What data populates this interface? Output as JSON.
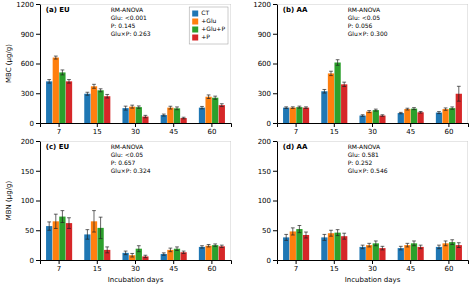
{
  "chart_data": [
    {
      "type": "bar",
      "title": "(a) EU",
      "ylabel": "MBC (μg/g)",
      "annotations": [
        "RM-ANOVA",
        "Glu: <0.001",
        "P: 0.145",
        "Glu×P: 0.263"
      ],
      "categories": [
        "7",
        "15",
        "30",
        "45",
        "60"
      ],
      "series": [
        {
          "name": "CT",
          "values": [
            420,
            295,
            150,
            80,
            155
          ],
          "errors": [
            18,
            15,
            20,
            10,
            12
          ]
        },
        {
          "name": "+Glu",
          "values": [
            660,
            370,
            165,
            155,
            265
          ],
          "errors": [
            15,
            20,
            15,
            14,
            18
          ]
        },
        {
          "name": "+Glu+P",
          "values": [
            510,
            330,
            160,
            148,
            255
          ],
          "errors": [
            25,
            15,
            12,
            14,
            16
          ]
        },
        {
          "name": "+P",
          "values": [
            420,
            270,
            65,
            50,
            180
          ],
          "errors": [
            18,
            18,
            12,
            8,
            14
          ]
        }
      ],
      "ylim": [
        0,
        1200
      ],
      "yticks": [
        0,
        300,
        600,
        900,
        1200
      ],
      "grid": false,
      "legend": "upper right"
    },
    {
      "type": "bar",
      "title": "(b) AA",
      "annotations": [
        "RM-ANOVA",
        "Glu: <0.05",
        "P: 0.056",
        "Glu×P: 0.300"
      ],
      "categories": [
        "7",
        "15",
        "30",
        "45",
        "60"
      ],
      "series": [
        {
          "values": [
            155,
            320,
            75,
            100,
            105
          ],
          "errors": [
            8,
            18,
            8,
            7,
            10
          ]
        },
        {
          "values": [
            155,
            500,
            115,
            140,
            140
          ],
          "errors": [
            8,
            22,
            10,
            9,
            12
          ]
        },
        {
          "values": [
            160,
            610,
            130,
            145,
            150
          ],
          "errors": [
            10,
            28,
            10,
            10,
            12
          ]
        },
        {
          "values": [
            155,
            390,
            75,
            108,
            295
          ],
          "errors": [
            8,
            22,
            8,
            8,
            75
          ]
        }
      ],
      "ylim": [
        0,
        1200
      ],
      "yticks": [
        0,
        300,
        600,
        900,
        1200
      ],
      "grid": false
    },
    {
      "type": "bar",
      "title": "(c) EU",
      "ylabel": "MBN (μg/g)",
      "xlabel": "Incubation days",
      "annotations": [
        "RM-ANOVA",
        "Glu: <0.05",
        "P: 0.657",
        "Glu×P: 0.324"
      ],
      "categories": [
        "7",
        "15",
        "30",
        "45",
        "60"
      ],
      "series": [
        {
          "values": [
            57,
            43,
            12,
            10,
            22
          ],
          "errors": [
            7,
            8,
            3,
            2,
            2
          ]
        },
        {
          "values": [
            65,
            65,
            8,
            17,
            24
          ],
          "errors": [
            12,
            18,
            3,
            3,
            2
          ]
        },
        {
          "values": [
            73,
            54,
            19,
            19,
            25
          ],
          "errors": [
            10,
            18,
            5,
            3,
            2
          ]
        },
        {
          "values": [
            62,
            17,
            6,
            13,
            23
          ],
          "errors": [
            9,
            5,
            2,
            2,
            2
          ]
        }
      ],
      "ylim": [
        0,
        200
      ],
      "yticks": [
        0,
        50,
        100,
        150,
        200
      ],
      "grid": false
    },
    {
      "type": "bar",
      "title": "(d) AA",
      "xlabel": "Incubation days",
      "annotations": [
        "RM-ANOVA",
        "Glu: 0.581",
        "P: 0.252",
        "Glu×P: 0.546"
      ],
      "categories": [
        "7",
        "15",
        "30",
        "45",
        "60"
      ],
      "series": [
        {
          "values": [
            38,
            38,
            22,
            20,
            22
          ],
          "errors": [
            5,
            5,
            3,
            3,
            3
          ]
        },
        {
          "values": [
            48,
            45,
            25,
            25,
            28
          ],
          "errors": [
            6,
            5,
            3,
            3,
            4
          ]
        },
        {
          "values": [
            52,
            46,
            28,
            28,
            30
          ],
          "errors": [
            6,
            5,
            4,
            4,
            4
          ]
        },
        {
          "values": [
            42,
            40,
            20,
            22,
            25
          ],
          "errors": [
            5,
            5,
            3,
            3,
            4
          ]
        }
      ],
      "ylim": [
        0,
        200
      ],
      "yticks": [
        0,
        50,
        100,
        150,
        200
      ],
      "grid": false
    }
  ]
}
